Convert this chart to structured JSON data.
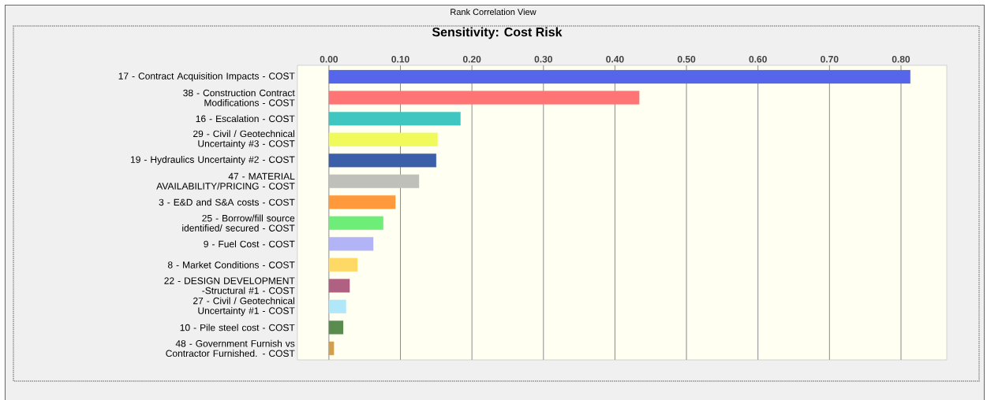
{
  "chart_data": {
    "type": "bar",
    "orientation": "horizontal",
    "title": "Sensitivity: Cost Risk",
    "annotations": [
      "Rank Correlation View"
    ],
    "categories": [
      "17 -  Contract Acquisition Impacts - COST",
      "38 - Construction Contract Modifications - COST",
      "16 - Escalation - COST",
      "29 - Civil / Geotechnical Uncertainty #3 - COST",
      "19 - Hydraulics Uncertainty #2 - COST",
      "47 - MATERIAL AVAILABILITY/PRICING - COST",
      "3 -  E&D and S&A costs - COST",
      "25 - Borrow/fill source identified/ secured - COST",
      "9 - Fuel Cost - COST",
      "8 - Market Conditions - COST",
      "22 - DESIGN DEVELOPMENT  -Structural #1 - COST",
      "27 - Civil / Geotechnical Uncertainty #1 - COST",
      "10 - Pile steel cost - COST",
      "48 - Government Furnish vs Contractor Furnished. - COST"
    ],
    "values": [
      0.813,
      0.434,
      0.184,
      0.152,
      0.15,
      0.126,
      0.093,
      0.076,
      0.062,
      0.04,
      0.029,
      0.024,
      0.02,
      0.007
    ],
    "colors": [
      "#5566ea",
      "#ff7575",
      "#40c6c0",
      "#f0fa5a",
      "#3b5fa8",
      "#c0c0bb",
      "#ff9a3c",
      "#6eee78",
      "#b3b3f8",
      "#ffd966",
      "#b06080",
      "#b0e8fa",
      "#5a8c50",
      "#d0a050"
    ],
    "xlim": [
      -0.044,
      0.864
    ],
    "xticks": [
      {
        "value": 0,
        "label": "0.00"
      },
      {
        "value": 0.1,
        "label": "0.10"
      },
      {
        "value": 0.2,
        "label": "0.20"
      },
      {
        "value": 0.3,
        "label": "0.30"
      },
      {
        "value": 0.4,
        "label": "0.40"
      },
      {
        "value": 0.5,
        "label": "0.50"
      },
      {
        "value": 0.6,
        "label": "0.60"
      },
      {
        "value": 0.7,
        "label": "0.70"
      },
      {
        "value": 0.8,
        "label": "0.80"
      }
    ],
    "grid": "x"
  }
}
